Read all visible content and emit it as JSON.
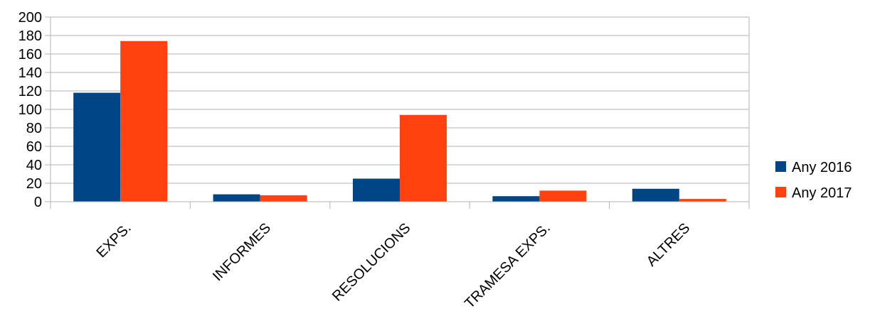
{
  "chart_data": {
    "type": "bar",
    "categories": [
      "EXPS.",
      "INFORMES",
      "RESOLUCIONS",
      "TRAMESA EXPS.",
      "ALTRES"
    ],
    "series": [
      {
        "name": "Any 2016",
        "color": "#004586",
        "values": [
          118,
          8,
          25,
          6,
          14
        ]
      },
      {
        "name": "Any 2017",
        "color": "#FF420E",
        "values": [
          174,
          7,
          94,
          12,
          3
        ]
      }
    ],
    "ylim": [
      0,
      200
    ],
    "yticks": [
      "0",
      "20",
      "40",
      "60",
      "80",
      "100",
      "120",
      "140",
      "160",
      "180",
      "200"
    ],
    "grid": true,
    "legend_position": "right"
  }
}
